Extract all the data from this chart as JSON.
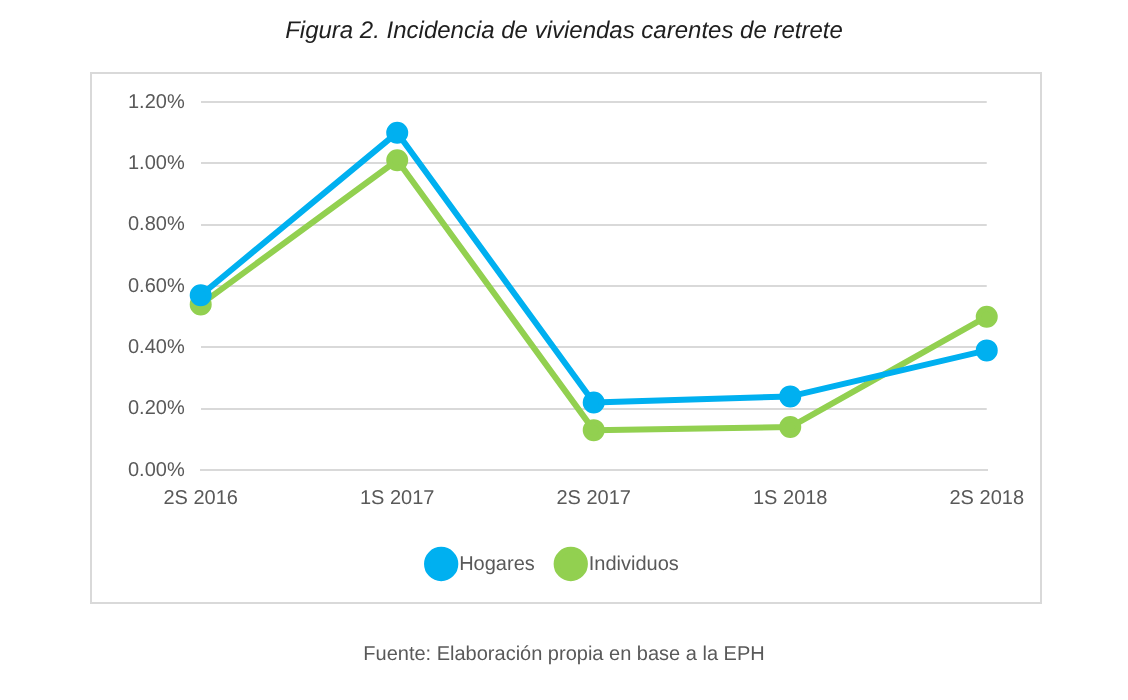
{
  "chart_data": {
    "type": "line",
    "title": "Figura 2. Incidencia de viviendas carentes de retrete",
    "categories": [
      "2S 2016",
      "1S 2017",
      "2S 2017",
      "1S 2018",
      "2S 2018"
    ],
    "series": [
      {
        "name": "Hogares",
        "color": "#00b0f0",
        "values": [
          0.57,
          1.1,
          0.22,
          0.24,
          0.39
        ]
      },
      {
        "name": "Individuos",
        "color": "#92d050",
        "values": [
          0.54,
          1.01,
          0.13,
          0.14,
          0.5
        ]
      }
    ],
    "ylim": [
      0,
      1.2
    ],
    "yticks": [
      {
        "value": 0,
        "label": "0.00%"
      },
      {
        "value": 0.2,
        "label": "0.20%"
      },
      {
        "value": 0.4,
        "label": "0.40%"
      },
      {
        "value": 0.6,
        "label": "0.60%"
      },
      {
        "value": 0.8,
        "label": "0.80%"
      },
      {
        "value": 1.0,
        "label": "1.00%"
      },
      {
        "value": 1.2,
        "label": "1.20%"
      }
    ],
    "grid": "y",
    "legend": "bottom",
    "marker": "circle",
    "line_style": "solid",
    "annotations": [
      "Fuente: Elaboración propia en base a la EPH"
    ]
  }
}
